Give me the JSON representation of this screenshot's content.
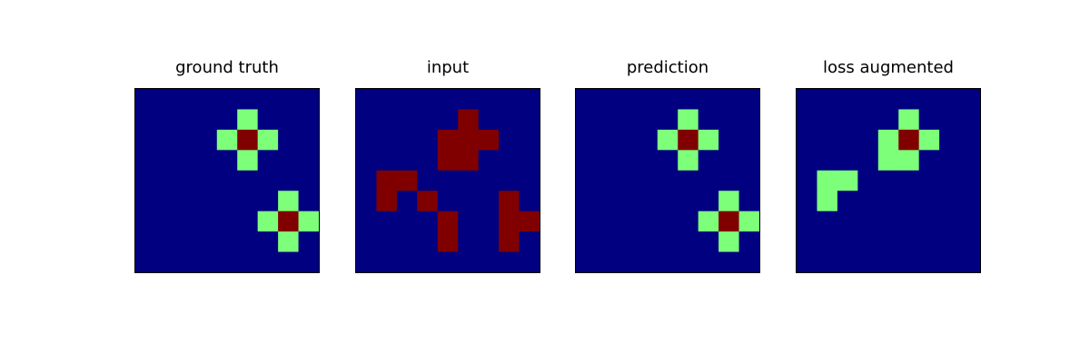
{
  "chart_data": [
    {
      "type": "heatmap",
      "title": "ground truth",
      "grid_size": 9,
      "ticks": "none",
      "colormap": "jet",
      "value_range": [
        0,
        2
      ],
      "colors": {
        "0": "#000080",
        "1": "#7dff7a",
        "2": "#800000"
      },
      "values": [
        [
          0,
          0,
          0,
          0,
          0,
          0,
          0,
          0,
          0
        ],
        [
          0,
          0,
          0,
          0,
          0,
          1,
          0,
          0,
          0
        ],
        [
          0,
          0,
          0,
          0,
          1,
          2,
          1,
          0,
          0
        ],
        [
          0,
          0,
          0,
          0,
          0,
          1,
          0,
          0,
          0
        ],
        [
          0,
          0,
          0,
          0,
          0,
          0,
          0,
          0,
          0
        ],
        [
          0,
          0,
          0,
          0,
          0,
          0,
          0,
          1,
          0
        ],
        [
          0,
          0,
          0,
          0,
          0,
          0,
          1,
          2,
          1
        ],
        [
          0,
          0,
          0,
          0,
          0,
          0,
          0,
          1,
          0
        ],
        [
          0,
          0,
          0,
          0,
          0,
          0,
          0,
          0,
          0
        ]
      ]
    },
    {
      "type": "heatmap",
      "title": "input",
      "grid_size": 9,
      "ticks": "none",
      "colormap": "jet",
      "value_range": [
        0,
        2
      ],
      "colors": {
        "0": "#000080",
        "1": "#7dff7a",
        "2": "#800000"
      },
      "values": [
        [
          0,
          0,
          0,
          0,
          0,
          0,
          0,
          0,
          0
        ],
        [
          0,
          0,
          0,
          0,
          0,
          2,
          0,
          0,
          0
        ],
        [
          0,
          0,
          0,
          0,
          2,
          2,
          2,
          0,
          0
        ],
        [
          0,
          0,
          0,
          0,
          2,
          2,
          0,
          0,
          0
        ],
        [
          0,
          2,
          2,
          0,
          0,
          0,
          0,
          0,
          0
        ],
        [
          0,
          2,
          0,
          2,
          0,
          0,
          0,
          2,
          0
        ],
        [
          0,
          0,
          0,
          0,
          2,
          0,
          0,
          2,
          2
        ],
        [
          0,
          0,
          0,
          0,
          2,
          0,
          0,
          2,
          0
        ],
        [
          0,
          0,
          0,
          0,
          0,
          0,
          0,
          0,
          0
        ]
      ]
    },
    {
      "type": "heatmap",
      "title": "prediction",
      "grid_size": 9,
      "ticks": "none",
      "colormap": "jet",
      "value_range": [
        0,
        2
      ],
      "colors": {
        "0": "#000080",
        "1": "#7dff7a",
        "2": "#800000"
      },
      "values": [
        [
          0,
          0,
          0,
          0,
          0,
          0,
          0,
          0,
          0
        ],
        [
          0,
          0,
          0,
          0,
          0,
          1,
          0,
          0,
          0
        ],
        [
          0,
          0,
          0,
          0,
          1,
          2,
          1,
          0,
          0
        ],
        [
          0,
          0,
          0,
          0,
          0,
          1,
          0,
          0,
          0
        ],
        [
          0,
          0,
          0,
          0,
          0,
          0,
          0,
          0,
          0
        ],
        [
          0,
          0,
          0,
          0,
          0,
          0,
          0,
          1,
          0
        ],
        [
          0,
          0,
          0,
          0,
          0,
          0,
          1,
          2,
          1
        ],
        [
          0,
          0,
          0,
          0,
          0,
          0,
          0,
          1,
          0
        ],
        [
          0,
          0,
          0,
          0,
          0,
          0,
          0,
          0,
          0
        ]
      ]
    },
    {
      "type": "heatmap",
      "title": "loss augmented",
      "grid_size": 9,
      "ticks": "none",
      "colormap": "jet",
      "value_range": [
        0,
        2
      ],
      "colors": {
        "0": "#000080",
        "1": "#7dff7a",
        "2": "#800000"
      },
      "values": [
        [
          0,
          0,
          0,
          0,
          0,
          0,
          0,
          0,
          0
        ],
        [
          0,
          0,
          0,
          0,
          0,
          1,
          0,
          0,
          0
        ],
        [
          0,
          0,
          0,
          0,
          1,
          2,
          1,
          0,
          0
        ],
        [
          0,
          0,
          0,
          0,
          1,
          1,
          0,
          0,
          0
        ],
        [
          0,
          1,
          1,
          0,
          0,
          0,
          0,
          0,
          0
        ],
        [
          0,
          1,
          0,
          0,
          0,
          0,
          0,
          0,
          0
        ],
        [
          0,
          0,
          0,
          0,
          0,
          0,
          0,
          0,
          0
        ],
        [
          0,
          0,
          0,
          0,
          0,
          0,
          0,
          0,
          0
        ],
        [
          0,
          0,
          0,
          0,
          0,
          0,
          0,
          0,
          0
        ]
      ]
    }
  ]
}
